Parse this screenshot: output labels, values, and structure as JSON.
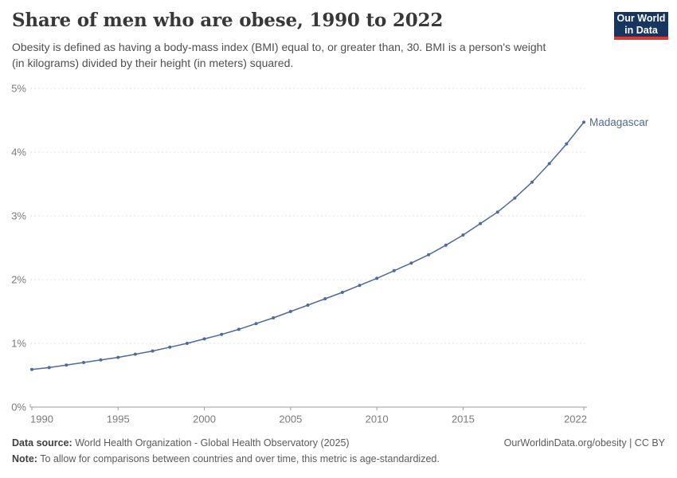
{
  "header": {
    "title": "Share of men who are obese, 1990 to 2022",
    "subtitle_line1": "Obesity is defined as having a body-mass index (BMI) equal to, or greater than, 30. BMI is a person's weight",
    "subtitle_line2": "(in kilograms) divided by their height (in meters) squared.",
    "logo": {
      "line1": "Our World",
      "line2": "in Data"
    }
  },
  "chart_data": {
    "type": "line",
    "title": "Share of men who are obese, 1990 to 2022",
    "xlabel": "",
    "ylabel": "",
    "xlim": [
      1990,
      2022
    ],
    "ylim": [
      0,
      5
    ],
    "grid": "horizontal-dashed",
    "legend_position": "end-of-line-label",
    "x_ticks": [
      {
        "value": 1990,
        "label": "1990"
      },
      {
        "value": 1995,
        "label": "1995"
      },
      {
        "value": 2000,
        "label": "2000"
      },
      {
        "value": 2005,
        "label": "2005"
      },
      {
        "value": 2010,
        "label": "2010"
      },
      {
        "value": 2015,
        "label": "2015"
      },
      {
        "value": 2022,
        "label": "2022"
      }
    ],
    "y_ticks": [
      {
        "value": 0,
        "label": "0%"
      },
      {
        "value": 1,
        "label": "1%"
      },
      {
        "value": 2,
        "label": "2%"
      },
      {
        "value": 3,
        "label": "3%"
      },
      {
        "value": 4,
        "label": "4%"
      },
      {
        "value": 5,
        "label": "5%"
      }
    ],
    "series": [
      {
        "name": "Madagascar",
        "color": "#4c6a9e",
        "x": [
          1990,
          1991,
          1992,
          1993,
          1994,
          1995,
          1996,
          1997,
          1998,
          1999,
          2000,
          2001,
          2002,
          2003,
          2004,
          2005,
          2006,
          2007,
          2008,
          2009,
          2010,
          2011,
          2012,
          2013,
          2014,
          2015,
          2016,
          2017,
          2018,
          2019,
          2020,
          2021,
          2022
        ],
        "values": [
          0.59,
          0.62,
          0.66,
          0.7,
          0.74,
          0.78,
          0.83,
          0.88,
          0.94,
          1.0,
          1.07,
          1.14,
          1.22,
          1.31,
          1.4,
          1.5,
          1.6,
          1.7,
          1.8,
          1.91,
          2.02,
          2.14,
          2.26,
          2.39,
          2.54,
          2.7,
          2.88,
          3.06,
          3.28,
          3.53,
          3.82,
          4.13,
          4.47
        ]
      }
    ]
  },
  "footer": {
    "source_label": "Data source:",
    "source_text": " World Health Organization - Global Health Observatory (2025)",
    "note_label": "Note:",
    "note_text": " To allow for comparisons between countries and over time, this metric is age-standardized.",
    "link": "OurWorldinData.org/obesity | CC BY"
  },
  "colors": {
    "line": "#4c6a9e",
    "grid": "#dedede",
    "axis": "#9e9e9e",
    "tick_label": "#7a7a7a",
    "logo_bg": "#163560",
    "logo_red": "#d93a34"
  }
}
